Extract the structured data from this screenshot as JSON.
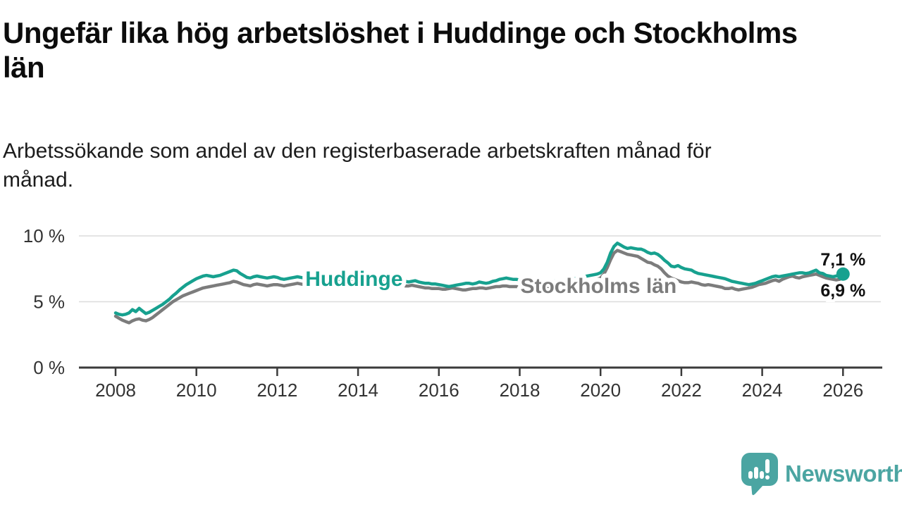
{
  "header": {
    "title": "Ungefär lika hög arbetslöshet i Huddinge och Stockholms län",
    "title_lines": [
      "Ungefär lika hög arbetslöshet i Huddinge och Stockholms",
      "län"
    ],
    "subtitle": "Arbetssökande som andel av den registerbaserade arbetskraften månad för månad.",
    "subtitle_lines": [
      "Arbetssökande som andel av den registerbaserade arbetskraften månad för",
      "månad."
    ]
  },
  "chart_data": {
    "type": "line",
    "unit": "%",
    "frequency": "monthly",
    "x_start_year": 2008,
    "x_end_year": 2026,
    "ylim": [
      0,
      10.6
    ],
    "grid": "horizontal",
    "yticks": [
      {
        "value": 0,
        "label": "0 %"
      },
      {
        "value": 5,
        "label": "5 %"
      },
      {
        "value": 10,
        "label": "10 %"
      }
    ],
    "xticks": [
      {
        "year": 2008,
        "label": "2008"
      },
      {
        "year": 2010,
        "label": "2010"
      },
      {
        "year": 2012,
        "label": "2012"
      },
      {
        "year": 2014,
        "label": "2014"
      },
      {
        "year": 2016,
        "label": "2016"
      },
      {
        "year": 2018,
        "label": "2018"
      },
      {
        "year": 2020,
        "label": "2020"
      },
      {
        "year": 2022,
        "label": "2022"
      },
      {
        "year": 2024,
        "label": "2024"
      },
      {
        "year": 2026,
        "label": "2026"
      }
    ],
    "colors": {
      "grid": "#dcdcdc",
      "axis": "#3b3b3b",
      "tick_label": "#333333",
      "value_label": "#111111"
    },
    "series": [
      {
        "id": "huddinge",
        "name": "Huddinge",
        "color": "#17a18f",
        "end_label": "7,1 %",
        "end_label_position": "above",
        "end_marker": true,
        "label_pos": {
          "year": 2013.9,
          "value": 6.75
        },
        "values": [
          4.15,
          4.05,
          4.0,
          4.05,
          4.15,
          4.4,
          4.25,
          4.5,
          4.3,
          4.1,
          4.2,
          4.35,
          4.5,
          4.65,
          4.8,
          5.0,
          5.2,
          5.45,
          5.65,
          5.9,
          6.1,
          6.3,
          6.45,
          6.6,
          6.75,
          6.85,
          6.95,
          7.0,
          6.95,
          6.9,
          6.95,
          7.0,
          7.1,
          7.2,
          7.3,
          7.4,
          7.35,
          7.15,
          7.0,
          6.85,
          6.8,
          6.9,
          6.95,
          6.9,
          6.85,
          6.8,
          6.85,
          6.9,
          6.85,
          6.75,
          6.7,
          6.75,
          6.8,
          6.85,
          6.9,
          6.85,
          6.8,
          6.85,
          6.9,
          6.95,
          6.9,
          6.85,
          6.8,
          6.75,
          6.7,
          6.7,
          6.65,
          6.6,
          6.55,
          6.55,
          6.5,
          6.5,
          6.5,
          6.45,
          6.45,
          6.5,
          6.5,
          6.55,
          6.55,
          6.5,
          6.5,
          6.55,
          6.6,
          6.6,
          6.6,
          6.55,
          6.55,
          6.5,
          6.55,
          6.6,
          6.5,
          6.45,
          6.4,
          6.4,
          6.35,
          6.35,
          6.3,
          6.25,
          6.2,
          6.15,
          6.2,
          6.25,
          6.3,
          6.35,
          6.4,
          6.4,
          6.35,
          6.4,
          6.5,
          6.45,
          6.4,
          6.45,
          6.55,
          6.6,
          6.7,
          6.75,
          6.8,
          6.75,
          6.7,
          6.7,
          6.65,
          6.6,
          6.55,
          6.5,
          6.5,
          6.45,
          6.45,
          6.5,
          6.5,
          6.55,
          6.55,
          6.6,
          6.6,
          6.65,
          6.7,
          6.7,
          6.75,
          6.8,
          6.85,
          6.9,
          6.95,
          7.0,
          7.05,
          7.1,
          7.2,
          7.5,
          8.0,
          8.7,
          9.2,
          9.45,
          9.3,
          9.15,
          9.05,
          9.1,
          9.05,
          9.0,
          9.0,
          8.9,
          8.75,
          8.65,
          8.7,
          8.6,
          8.4,
          8.15,
          7.95,
          7.7,
          7.65,
          7.75,
          7.6,
          7.5,
          7.45,
          7.4,
          7.25,
          7.15,
          7.1,
          7.05,
          7.0,
          6.95,
          6.9,
          6.85,
          6.8,
          6.75,
          6.65,
          6.55,
          6.5,
          6.45,
          6.4,
          6.35,
          6.3,
          6.35,
          6.4,
          6.5,
          6.6,
          6.7,
          6.8,
          6.9,
          6.95,
          6.9,
          6.95,
          7.0,
          7.05,
          7.1,
          7.15,
          7.2,
          7.2,
          7.15,
          7.2,
          7.3,
          7.4,
          7.2,
          7.15,
          7.0,
          6.95,
          6.9,
          6.95,
          7.0,
          7.1
        ]
      },
      {
        "id": "stockholms-lan",
        "name": "Stockholms län",
        "color": "#7c7c7c",
        "end_label": "6,9 %",
        "end_label_position": "below",
        "end_marker": false,
        "label_pos": {
          "year": 2019.95,
          "value": 6.2
        },
        "values": [
          3.9,
          3.75,
          3.6,
          3.5,
          3.4,
          3.55,
          3.65,
          3.7,
          3.6,
          3.55,
          3.65,
          3.8,
          4.0,
          4.2,
          4.4,
          4.6,
          4.8,
          5.0,
          5.15,
          5.3,
          5.45,
          5.55,
          5.65,
          5.75,
          5.85,
          5.95,
          6.05,
          6.1,
          6.15,
          6.2,
          6.25,
          6.3,
          6.35,
          6.4,
          6.45,
          6.55,
          6.5,
          6.4,
          6.3,
          6.25,
          6.2,
          6.3,
          6.35,
          6.3,
          6.25,
          6.2,
          6.25,
          6.3,
          6.3,
          6.25,
          6.2,
          6.25,
          6.3,
          6.35,
          6.4,
          6.35,
          6.3,
          6.35,
          6.4,
          6.45,
          6.4,
          6.35,
          6.3,
          6.3,
          6.25,
          6.25,
          6.2,
          6.2,
          6.15,
          6.15,
          6.1,
          6.1,
          6.1,
          6.05,
          6.05,
          6.0,
          6.05,
          6.1,
          6.1,
          6.15,
          6.1,
          6.1,
          6.15,
          6.2,
          6.25,
          6.25,
          6.2,
          6.2,
          6.25,
          6.2,
          6.15,
          6.1,
          6.05,
          6.05,
          6.0,
          6.0,
          6.0,
          5.95,
          5.95,
          6.0,
          6.05,
          6.0,
          5.95,
          5.9,
          5.9,
          5.95,
          6.0,
          6.0,
          6.05,
          6.05,
          6.0,
          6.05,
          6.1,
          6.15,
          6.15,
          6.2,
          6.2,
          6.15,
          6.15,
          6.15,
          6.1,
          6.05,
          6.0,
          6.0,
          5.95,
          5.95,
          6.0,
          6.0,
          6.05,
          6.05,
          6.1,
          6.1,
          6.1,
          6.15,
          6.2,
          6.25,
          6.3,
          6.35,
          6.4,
          6.45,
          6.5,
          6.55,
          6.6,
          6.7,
          6.8,
          7.1,
          7.6,
          8.2,
          8.7,
          8.9,
          8.8,
          8.7,
          8.6,
          8.55,
          8.5,
          8.45,
          8.3,
          8.15,
          8.0,
          7.95,
          7.8,
          7.7,
          7.5,
          7.2,
          6.95,
          6.8,
          6.7,
          6.6,
          6.5,
          6.45,
          6.45,
          6.5,
          6.45,
          6.4,
          6.3,
          6.25,
          6.3,
          6.25,
          6.2,
          6.15,
          6.1,
          6.0,
          6.0,
          6.05,
          5.95,
          5.9,
          5.95,
          6.0,
          6.05,
          6.1,
          6.2,
          6.3,
          6.35,
          6.4,
          6.5,
          6.6,
          6.65,
          6.55,
          6.7,
          6.8,
          6.9,
          6.95,
          6.85,
          6.8,
          6.9,
          6.95,
          7.0,
          7.05,
          7.1,
          7.0,
          6.9,
          6.8,
          6.75,
          6.7,
          6.65,
          6.7,
          6.9
        ]
      }
    ]
  },
  "footer": {
    "brand": "Newsworthy",
    "brand_color": "#4ba5a2"
  }
}
